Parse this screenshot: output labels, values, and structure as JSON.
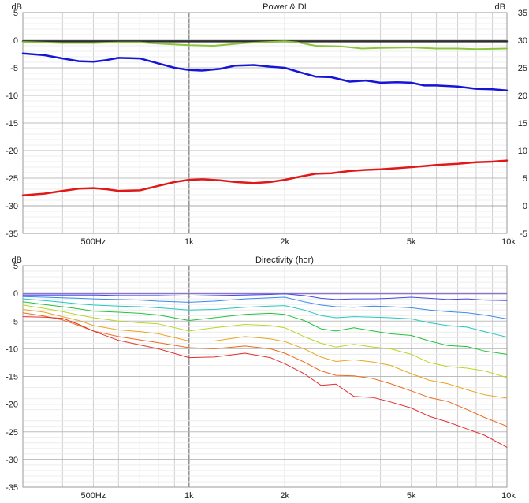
{
  "chart_data": [
    {
      "type": "line",
      "title": "Power & DI",
      "ylabel_left": "dB",
      "ylabel_right": "dB",
      "xscale": "log",
      "xlim": [
        300,
        10000
      ],
      "ylim_left": [
        -35,
        5
      ],
      "ylim_right": [
        -5,
        35
      ],
      "grid": true,
      "x_tick_labels": [
        {
          "value": 500,
          "label": "500Hz"
        },
        {
          "value": 1000,
          "label": "1k"
        },
        {
          "value": 2000,
          "label": "2k"
        },
        {
          "value": 5000,
          "label": "5k"
        },
        {
          "value": 10000,
          "label": "10k"
        }
      ],
      "y_ticks_left": [
        5,
        0,
        -5,
        -10,
        -15,
        -20,
        -25,
        -30,
        -35
      ],
      "y_ticks_right": [
        35,
        30,
        25,
        20,
        15,
        10,
        5,
        0,
        -5
      ],
      "series": [
        {
          "color": "#2e2e2e",
          "width": 2.5,
          "axis": "left",
          "x": [
            300,
            10000
          ],
          "y": [
            -0.2,
            -0.2
          ]
        },
        {
          "color": "#8cc43c",
          "width": 2,
          "axis": "left",
          "x": [
            300,
            400,
            500,
            600,
            700,
            800,
            1000,
            1200,
            1500,
            1800,
            2000,
            2200,
            2500,
            3000,
            3500,
            4000,
            5000,
            6000,
            7000,
            8000,
            10000
          ],
          "y": [
            -0.3,
            -0.5,
            -0.5,
            -0.4,
            -0.4,
            -0.6,
            -0.9,
            -1.0,
            -0.5,
            -0.3,
            -0.2,
            -0.4,
            -1.0,
            -1.1,
            -1.5,
            -1.4,
            -1.3,
            -1.5,
            -1.5,
            -1.6,
            -1.5
          ]
        },
        {
          "color": "#1515d8",
          "width": 2.5,
          "axis": "left",
          "x": [
            300,
            350,
            400,
            450,
            500,
            550,
            600,
            700,
            800,
            900,
            1000,
            1100,
            1250,
            1400,
            1600,
            1800,
            2000,
            2200,
            2500,
            2800,
            3200,
            3600,
            4000,
            4500,
            5000,
            5500,
            6000,
            7000,
            8000,
            9000,
            10000
          ],
          "y": [
            -2.4,
            -2.7,
            -3.3,
            -3.8,
            -3.9,
            -3.6,
            -3.2,
            -3.3,
            -4.2,
            -5.0,
            -5.4,
            -5.5,
            -5.2,
            -4.6,
            -4.5,
            -4.8,
            -5.0,
            -5.7,
            -6.6,
            -6.7,
            -7.5,
            -7.3,
            -7.7,
            -7.6,
            -7.7,
            -8.2,
            -8.2,
            -8.4,
            -8.8,
            -8.9,
            -9.1
          ]
        },
        {
          "color": "#e01818",
          "width": 2.5,
          "axis": "right",
          "x": [
            300,
            350,
            400,
            450,
            500,
            550,
            600,
            700,
            800,
            900,
            1000,
            1100,
            1250,
            1400,
            1600,
            1800,
            2000,
            2200,
            2500,
            2800,
            3200,
            3600,
            4000,
            4500,
            5000,
            5500,
            6000,
            7000,
            8000,
            9000,
            10000
          ],
          "y": [
            1.9,
            2.2,
            2.7,
            3.1,
            3.2,
            3.0,
            2.7,
            2.8,
            3.6,
            4.3,
            4.7,
            4.8,
            4.6,
            4.3,
            4.1,
            4.3,
            4.7,
            5.2,
            5.8,
            5.9,
            6.3,
            6.5,
            6.6,
            6.8,
            7.0,
            7.2,
            7.4,
            7.6,
            7.9,
            8.0,
            8.2
          ]
        }
      ]
    },
    {
      "type": "line",
      "title": "Directivity (hor)",
      "ylabel_left": "dB",
      "xscale": "log",
      "xlim": [
        300,
        10000
      ],
      "ylim": [
        -35,
        5
      ],
      "grid": true,
      "x_tick_labels": [
        {
          "value": 500,
          "label": "500Hz"
        },
        {
          "value": 1000,
          "label": "1k"
        },
        {
          "value": 2000,
          "label": "2k"
        },
        {
          "value": 5000,
          "label": "5k"
        },
        {
          "value": 10000,
          "label": "10k"
        }
      ],
      "y_ticks_left": [
        5,
        0,
        -5,
        -10,
        -15,
        -20,
        -25,
        -30,
        -35
      ],
      "x": [
        300,
        350,
        400,
        450,
        500,
        600,
        700,
        800,
        1000,
        1200,
        1500,
        1800,
        2000,
        2300,
        2600,
        2900,
        3300,
        3800,
        4300,
        5000,
        5700,
        6500,
        7500,
        8500,
        10000
      ],
      "series": [
        {
          "color": "#7a5cd6",
          "width": 1,
          "y": [
            -0.1,
            -0.1,
            -0.1,
            -0.1,
            -0.1,
            -0.1,
            -0.1,
            -0.1,
            -0.1,
            -0.1,
            -0.1,
            -0.1,
            -0.1,
            -0.1,
            -0.1,
            -0.1,
            -0.1,
            -0.1,
            -0.1,
            -0.1,
            -0.1,
            -0.1,
            -0.1,
            -0.1,
            -0.1
          ]
        },
        {
          "color": "#4848e6",
          "width": 1,
          "y": [
            -0.3,
            -0.3,
            -0.3,
            -0.3,
            -0.3,
            -0.4,
            -0.4,
            -0.4,
            -0.5,
            -0.4,
            -0.3,
            -0.2,
            -0.1,
            -0.4,
            -0.9,
            -1.1,
            -1.0,
            -1.0,
            -0.9,
            -0.7,
            -0.9,
            -1.1,
            -1.0,
            -1.2,
            -1.3
          ]
        },
        {
          "color": "#3a8aee",
          "width": 1,
          "y": [
            -0.6,
            -0.7,
            -0.8,
            -0.9,
            -1.0,
            -1.1,
            -1.2,
            -1.4,
            -1.6,
            -1.4,
            -1.0,
            -0.8,
            -0.7,
            -1.5,
            -2.1,
            -2.4,
            -2.5,
            -2.3,
            -2.4,
            -2.6,
            -3.0,
            -3.3,
            -3.5,
            -3.9,
            -4.6
          ]
        },
        {
          "color": "#22c8c0",
          "width": 1,
          "y": [
            -1.0,
            -1.3,
            -1.6,
            -1.9,
            -2.1,
            -2.3,
            -2.4,
            -2.6,
            -3.0,
            -2.9,
            -2.5,
            -2.3,
            -2.2,
            -3.0,
            -4.0,
            -4.4,
            -4.2,
            -4.3,
            -4.4,
            -4.6,
            -5.3,
            -5.8,
            -6.1,
            -6.9,
            -7.9
          ]
        },
        {
          "color": "#23c23c",
          "width": 1,
          "y": [
            -1.5,
            -2.0,
            -2.4,
            -2.8,
            -3.2,
            -3.4,
            -3.6,
            -3.9,
            -4.9,
            -4.4,
            -3.8,
            -3.6,
            -3.8,
            -4.9,
            -6.4,
            -6.8,
            -6.2,
            -6.8,
            -7.3,
            -7.6,
            -8.6,
            -9.4,
            -9.6,
            -10.4,
            -11.0
          ]
        },
        {
          "color": "#b8d628",
          "width": 1,
          "y": [
            -2.1,
            -2.7,
            -3.3,
            -3.9,
            -4.4,
            -5.0,
            -5.3,
            -5.5,
            -6.8,
            -6.2,
            -5.6,
            -5.8,
            -6.2,
            -7.8,
            -9.0,
            -9.7,
            -9.2,
            -9.7,
            -10.0,
            -11.0,
            -12.5,
            -13.2,
            -13.5,
            -14.0,
            -15.2
          ]
        },
        {
          "color": "#e8a61e",
          "width": 1,
          "y": [
            -2.9,
            -3.4,
            -4.2,
            -4.9,
            -5.8,
            -6.6,
            -6.9,
            -7.3,
            -8.6,
            -8.6,
            -7.8,
            -8.2,
            -8.7,
            -10.0,
            -11.5,
            -12.3,
            -12.0,
            -12.4,
            -13.0,
            -14.5,
            -15.7,
            -16.3,
            -17.4,
            -18.3,
            -18.9
          ]
        },
        {
          "color": "#ee6a1c",
          "width": 1,
          "y": [
            -3.5,
            -4.1,
            -4.8,
            -5.8,
            -6.8,
            -7.8,
            -8.4,
            -8.9,
            -9.8,
            -10.0,
            -9.5,
            -10.0,
            -10.8,
            -12.4,
            -14.0,
            -14.8,
            -14.9,
            -15.4,
            -16.3,
            -17.6,
            -18.8,
            -19.5,
            -21.0,
            -22.4,
            -24.0
          ]
        },
        {
          "color": "#e22f2f",
          "width": 1,
          "y": [
            -4.2,
            -4.3,
            -4.5,
            -5.6,
            -6.8,
            -8.5,
            -9.3,
            -10.0,
            -11.6,
            -11.5,
            -10.8,
            -11.6,
            -12.7,
            -14.5,
            -16.6,
            -16.4,
            -18.6,
            -18.8,
            -19.6,
            -20.7,
            -22.2,
            -23.2,
            -24.5,
            -25.6,
            -27.8
          ]
        }
      ]
    }
  ]
}
